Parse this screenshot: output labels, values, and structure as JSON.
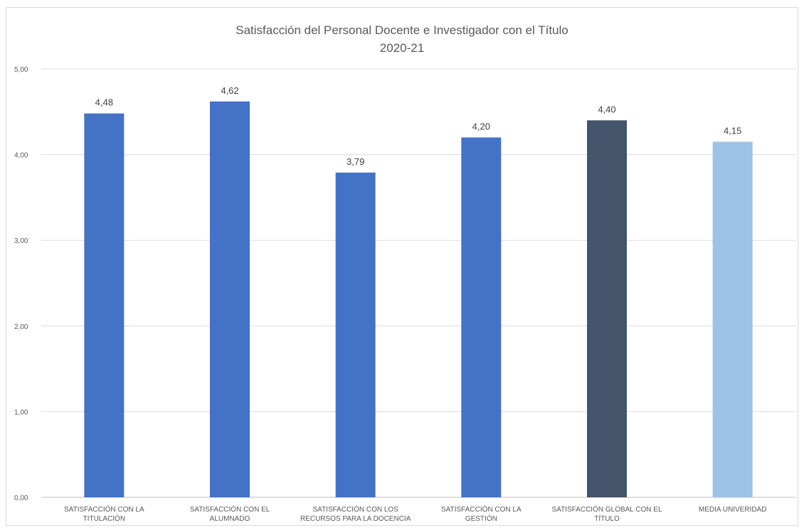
{
  "chart_data": {
    "type": "bar",
    "title": "Satisfacción del Personal Docente e Investigador con el Título",
    "subtitle": "2020-21",
    "categories": [
      [
        "SATISFACCIÓN CON LA",
        "TITULACIÓN"
      ],
      [
        "SATISFACCIÓN CON EL",
        "ALUMNADO"
      ],
      [
        "SATISFACCIÓN CON LOS",
        "RECURSOS PARA LA DOCENCIA"
      ],
      [
        "SATISFACCIÓN CON LA",
        "GESTIÓN"
      ],
      [
        "SATISFACCIÓN GLOBAL CON EL",
        "TÍTULO"
      ],
      [
        "MEDIA UNIVERIDAD"
      ]
    ],
    "values": [
      4.48,
      4.62,
      3.79,
      4.2,
      4.4,
      4.15
    ],
    "value_labels": [
      "4,48",
      "4,62",
      "3,79",
      "4,20",
      "4,40",
      "4,15"
    ],
    "bar_colors": [
      "#4472c4",
      "#4472c4",
      "#4472c4",
      "#4472c4",
      "#44546a",
      "#9dc3e6"
    ],
    "yticks": [
      "0,00",
      "1,00",
      "2,00",
      "3,00",
      "4,00",
      "5,00"
    ],
    "ylim": [
      0,
      5
    ],
    "grid": true,
    "legend": "none",
    "xlabel": "",
    "ylabel": ""
  }
}
